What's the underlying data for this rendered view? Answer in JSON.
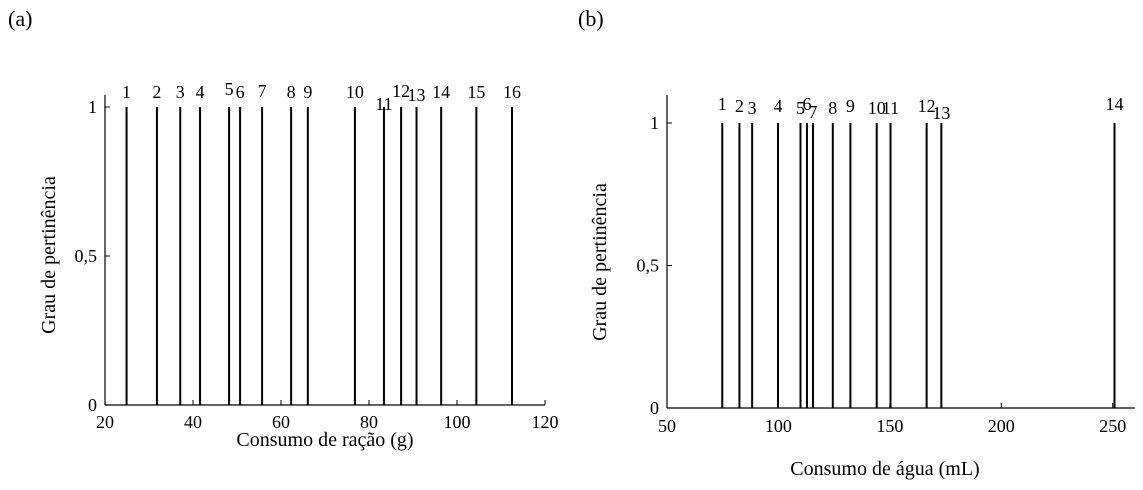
{
  "chart_data": [
    {
      "panel": "(a)",
      "type": "bar",
      "xlabel": "Consumo de ração (g)",
      "ylabel": "Grau de pertinência",
      "xlim": [
        20,
        120
      ],
      "ylim": [
        0,
        1
      ],
      "xticks": [
        "20",
        "40",
        "60",
        "80",
        "100",
        "120"
      ],
      "yticks": [
        "0",
        "0,5",
        "1"
      ],
      "grid": false,
      "labels": [
        "1",
        "2",
        "3",
        "4",
        "5",
        "6",
        "7",
        "8",
        "9",
        "10",
        "11",
        "12",
        "13",
        "14",
        "15",
        "16"
      ],
      "x": [
        24.9,
        31.8,
        37.1,
        41.6,
        48.2,
        50.7,
        55.7,
        62.3,
        66.1,
        76.8,
        83.4,
        87.3,
        90.8,
        96.4,
        104.4,
        112.5
      ],
      "values": [
        1,
        1,
        1,
        1,
        1,
        1,
        1,
        1,
        1,
        1,
        1,
        1,
        1,
        1,
        1,
        1
      ]
    },
    {
      "panel": "(b)",
      "type": "bar",
      "xlabel": "Consumo de água (mL)",
      "ylabel": "Grau de pertinência",
      "xlim": [
        50,
        260
      ],
      "ylim": [
        0,
        1
      ],
      "xticks": [
        "50",
        "100",
        "150",
        "200",
        "250"
      ],
      "yticks": [
        "0",
        "0,5",
        "1"
      ],
      "grid": false,
      "labels": [
        "1",
        "2",
        "3",
        "4",
        "5",
        "6",
        "7",
        "8",
        "9",
        "10",
        "11",
        "12",
        "13",
        "14"
      ],
      "x": [
        74.8,
        82.5,
        88.2,
        99.8,
        109.9,
        112.8,
        115.5,
        124.4,
        132.3,
        144.1,
        150.3,
        166.5,
        173.1,
        250.8
      ],
      "values": [
        1,
        1,
        1,
        1,
        1,
        1,
        1,
        1,
        1,
        1,
        1,
        1,
        1,
        1
      ]
    }
  ]
}
